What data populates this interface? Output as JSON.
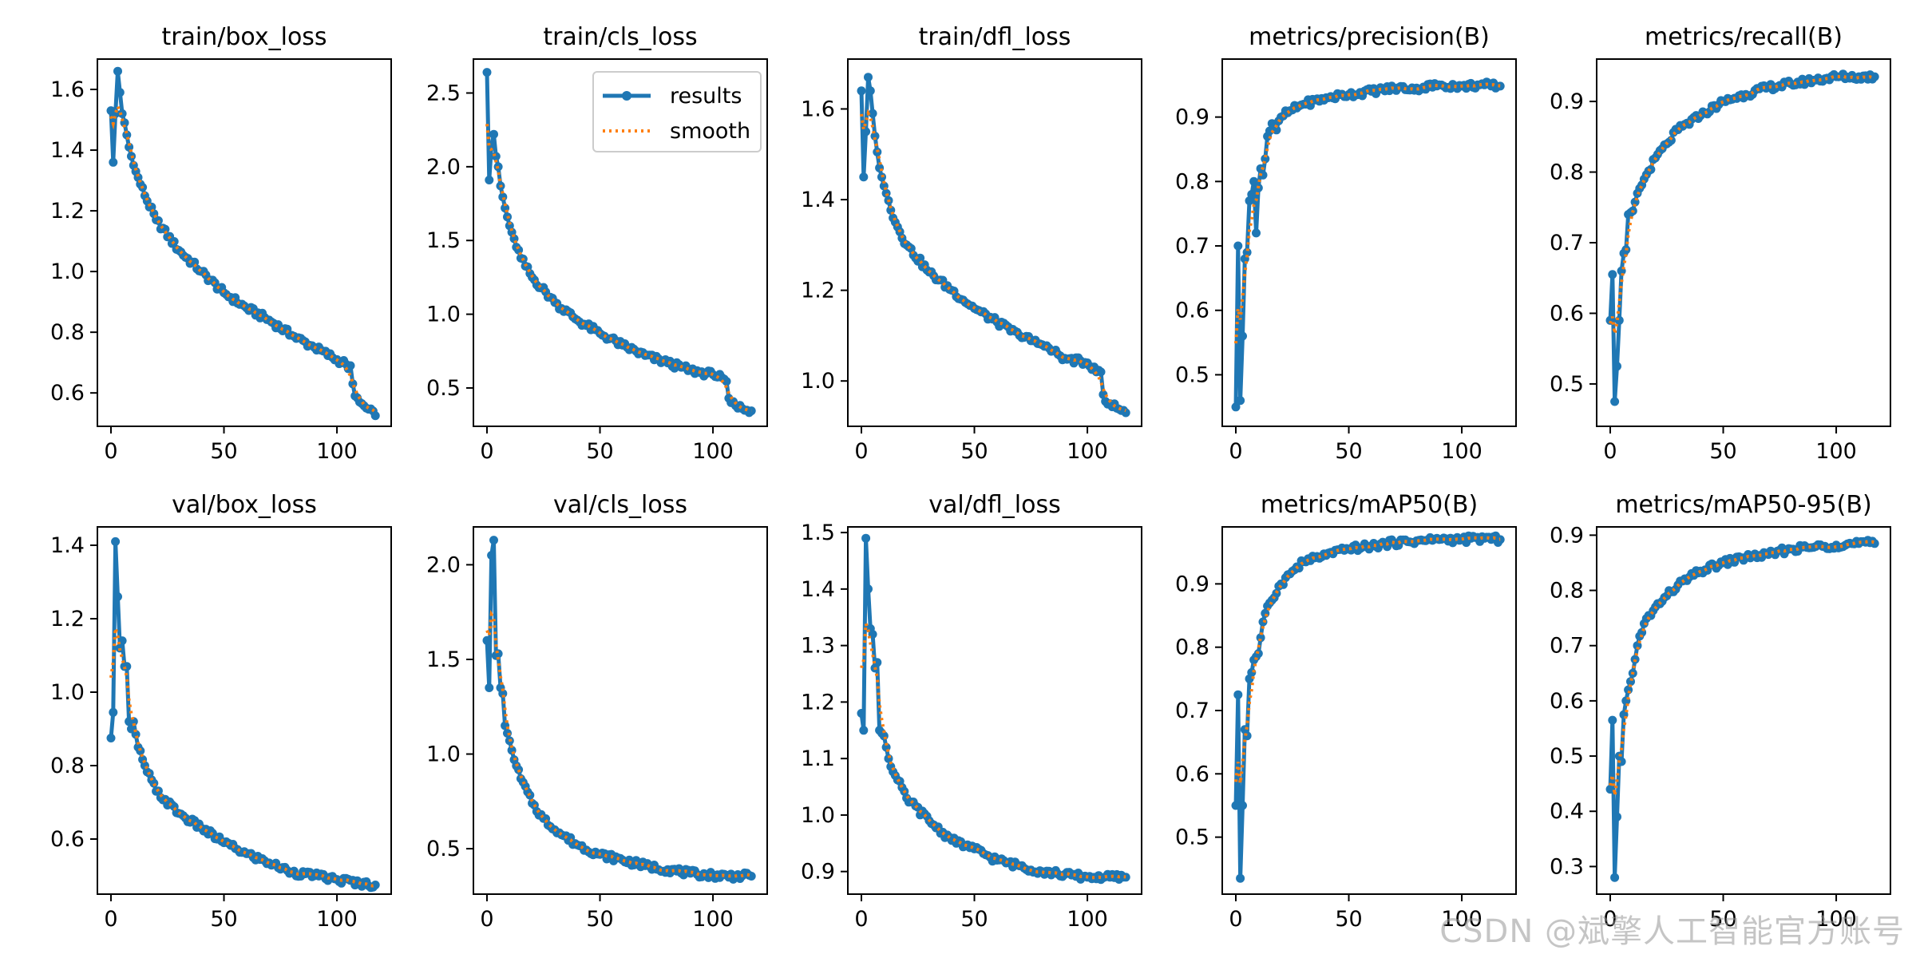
{
  "figure": {
    "watermark": "CSDN @斌擎人工智能官方账号",
    "legend": {
      "results": "results",
      "smooth": "smooth",
      "placement": "upper right of train/cls_loss"
    },
    "colors": {
      "results": "#1f77b4",
      "smooth": "#ff7f0e",
      "axis": "#000000",
      "background": "#ffffff"
    }
  },
  "chart_data": [
    {
      "type": "line",
      "title": "train/box_loss",
      "xlabel": "",
      "ylabel": "",
      "xlim": [
        -6,
        124
      ],
      "ylim": [
        0.49,
        1.7
      ],
      "xticks": [
        0,
        50,
        100
      ],
      "yticks": [
        0.6,
        0.8,
        1.0,
        1.2,
        1.4,
        1.6
      ],
      "ytick_labels": [
        "0.6",
        "0.8",
        "1.0",
        "1.2",
        "1.4",
        "1.6"
      ],
      "n_points": 118,
      "anchors": [
        [
          0,
          1.53
        ],
        [
          1,
          1.36
        ],
        [
          2,
          1.52
        ],
        [
          3,
          1.66
        ],
        [
          4,
          1.59
        ],
        [
          5,
          1.52
        ],
        [
          6,
          1.49
        ],
        [
          8,
          1.41
        ],
        [
          10,
          1.35
        ],
        [
          15,
          1.25
        ],
        [
          20,
          1.17
        ],
        [
          30,
          1.07
        ],
        [
          40,
          1.0
        ],
        [
          50,
          0.93
        ],
        [
          60,
          0.88
        ],
        [
          70,
          0.84
        ],
        [
          80,
          0.79
        ],
        [
          90,
          0.75
        ],
        [
          100,
          0.71
        ],
        [
          104,
          0.695
        ],
        [
          105,
          0.68
        ],
        [
          106,
          0.69
        ],
        [
          107,
          0.63
        ],
        [
          108,
          0.59
        ],
        [
          110,
          0.57
        ],
        [
          113,
          0.55
        ],
        [
          117,
          0.525
        ]
      ],
      "smooth": true,
      "legend": false
    },
    {
      "type": "line",
      "title": "train/cls_loss",
      "xlabel": "",
      "ylabel": "",
      "xlim": [
        -6,
        124
      ],
      "ylim": [
        0.24,
        2.73
      ],
      "xticks": [
        0,
        50,
        100
      ],
      "yticks": [
        0.5,
        1.0,
        1.5,
        2.0,
        2.5
      ],
      "ytick_labels": [
        "0.5",
        "1.0",
        "1.5",
        "2.0",
        "2.5"
      ],
      "n_points": 118,
      "anchors": [
        [
          0,
          2.64
        ],
        [
          1,
          1.91
        ],
        [
          2,
          2.14
        ],
        [
          3,
          2.22
        ],
        [
          4,
          2.07
        ],
        [
          5,
          2.0
        ],
        [
          6,
          1.87
        ],
        [
          8,
          1.72
        ],
        [
          10,
          1.6
        ],
        [
          15,
          1.38
        ],
        [
          20,
          1.25
        ],
        [
          30,
          1.08
        ],
        [
          40,
          0.96
        ],
        [
          50,
          0.87
        ],
        [
          60,
          0.79
        ],
        [
          70,
          0.72
        ],
        [
          80,
          0.67
        ],
        [
          90,
          0.62
        ],
        [
          100,
          0.59
        ],
        [
          104,
          0.57
        ],
        [
          105,
          0.56
        ],
        [
          106,
          0.545
        ],
        [
          107,
          0.43
        ],
        [
          108,
          0.4
        ],
        [
          110,
          0.38
        ],
        [
          113,
          0.36
        ],
        [
          117,
          0.345
        ]
      ],
      "smooth": true,
      "legend": true
    },
    {
      "type": "line",
      "title": "train/dfl_loss",
      "xlabel": "",
      "ylabel": "",
      "xlim": [
        -6,
        124
      ],
      "ylim": [
        0.9,
        1.71
      ],
      "xticks": [
        0,
        50,
        100
      ],
      "yticks": [
        1.0,
        1.2,
        1.4,
        1.6
      ],
      "ytick_labels": [
        "1.0",
        "1.2",
        "1.4",
        "1.6"
      ],
      "n_points": 118,
      "anchors": [
        [
          0,
          1.64
        ],
        [
          1,
          1.45
        ],
        [
          2,
          1.55
        ],
        [
          3,
          1.67
        ],
        [
          4,
          1.64
        ],
        [
          5,
          1.59
        ],
        [
          6,
          1.54
        ],
        [
          8,
          1.47
        ],
        [
          10,
          1.43
        ],
        [
          15,
          1.35
        ],
        [
          20,
          1.3
        ],
        [
          30,
          1.24
        ],
        [
          40,
          1.2
        ],
        [
          50,
          1.16
        ],
        [
          60,
          1.13
        ],
        [
          70,
          1.1
        ],
        [
          80,
          1.08
        ],
        [
          90,
          1.05
        ],
        [
          100,
          1.04
        ],
        [
          104,
          1.02
        ],
        [
          106,
          1.02
        ],
        [
          107,
          0.97
        ],
        [
          108,
          0.955
        ],
        [
          110,
          0.95
        ],
        [
          113,
          0.94
        ],
        [
          117,
          0.93
        ]
      ],
      "smooth": true,
      "legend": false
    },
    {
      "type": "line",
      "title": "metrics/precision(B)",
      "xlabel": "",
      "ylabel": "",
      "xlim": [
        -6,
        124
      ],
      "ylim": [
        0.42,
        0.99
      ],
      "xticks": [
        0,
        50,
        100
      ],
      "yticks": [
        0.5,
        0.6,
        0.7,
        0.8,
        0.9
      ],
      "ytick_labels": [
        "0.5",
        "0.6",
        "0.7",
        "0.8",
        "0.9"
      ],
      "n_points": 118,
      "anchors": [
        [
          0,
          0.45
        ],
        [
          1,
          0.7
        ],
        [
          2,
          0.46
        ],
        [
          3,
          0.56
        ],
        [
          4,
          0.68
        ],
        [
          5,
          0.69
        ],
        [
          6,
          0.77
        ],
        [
          7,
          0.78
        ],
        [
          8,
          0.8
        ],
        [
          9,
          0.72
        ],
        [
          10,
          0.79
        ],
        [
          11,
          0.82
        ],
        [
          12,
          0.81
        ],
        [
          14,
          0.87
        ],
        [
          16,
          0.89
        ],
        [
          18,
          0.88
        ],
        [
          20,
          0.9
        ],
        [
          24,
          0.91
        ],
        [
          30,
          0.92
        ],
        [
          40,
          0.93
        ],
        [
          50,
          0.935
        ],
        [
          60,
          0.94
        ],
        [
          70,
          0.945
        ],
        [
          80,
          0.945
        ],
        [
          90,
          0.95
        ],
        [
          100,
          0.948
        ],
        [
          110,
          0.95
        ],
        [
          117,
          0.948
        ]
      ],
      "smooth": true,
      "legend": false
    },
    {
      "type": "line",
      "title": "metrics/recall(B)",
      "xlabel": "",
      "ylabel": "",
      "xlim": [
        -6,
        124
      ],
      "ylim": [
        0.44,
        0.96
      ],
      "xticks": [
        0,
        50,
        100
      ],
      "yticks": [
        0.5,
        0.6,
        0.7,
        0.8,
        0.9
      ],
      "ytick_labels": [
        "0.5",
        "0.6",
        "0.7",
        "0.8",
        "0.9"
      ],
      "n_points": 118,
      "anchors": [
        [
          0,
          0.59
        ],
        [
          1,
          0.655
        ],
        [
          2,
          0.475
        ],
        [
          3,
          0.525
        ],
        [
          4,
          0.59
        ],
        [
          5,
          0.66
        ],
        [
          6,
          0.685
        ],
        [
          7,
          0.69
        ],
        [
          8,
          0.74
        ],
        [
          10,
          0.745
        ],
        [
          12,
          0.77
        ],
        [
          15,
          0.79
        ],
        [
          20,
          0.82
        ],
        [
          25,
          0.84
        ],
        [
          30,
          0.86
        ],
        [
          40,
          0.88
        ],
        [
          50,
          0.9
        ],
        [
          60,
          0.91
        ],
        [
          70,
          0.92
        ],
        [
          80,
          0.925
        ],
        [
          90,
          0.93
        ],
        [
          100,
          0.935
        ],
        [
          110,
          0.935
        ],
        [
          117,
          0.935
        ]
      ],
      "smooth": true,
      "legend": false
    },
    {
      "type": "line",
      "title": "val/box_loss",
      "xlabel": "",
      "ylabel": "",
      "xlim": [
        -6,
        124
      ],
      "ylim": [
        0.45,
        1.45
      ],
      "xticks": [
        0,
        50,
        100
      ],
      "yticks": [
        0.6,
        0.8,
        1.0,
        1.2,
        1.4
      ],
      "ytick_labels": [
        "0.6",
        "0.8",
        "1.0",
        "1.2",
        "1.4"
      ],
      "n_points": 118,
      "anchors": [
        [
          0,
          0.875
        ],
        [
          1,
          0.945
        ],
        [
          2,
          1.41
        ],
        [
          3,
          1.26
        ],
        [
          4,
          1.12
        ],
        [
          5,
          1.14
        ],
        [
          6,
          1.07
        ],
        [
          7,
          1.07
        ],
        [
          8,
          0.92
        ],
        [
          9,
          0.9
        ],
        [
          10,
          0.92
        ],
        [
          12,
          0.85
        ],
        [
          15,
          0.8
        ],
        [
          20,
          0.73
        ],
        [
          30,
          0.67
        ],
        [
          40,
          0.63
        ],
        [
          50,
          0.59
        ],
        [
          60,
          0.56
        ],
        [
          70,
          0.535
        ],
        [
          80,
          0.51
        ],
        [
          90,
          0.5
        ],
        [
          100,
          0.49
        ],
        [
          110,
          0.48
        ],
        [
          117,
          0.475
        ]
      ],
      "smooth": true,
      "legend": false
    },
    {
      "type": "line",
      "title": "val/cls_loss",
      "xlabel": "",
      "ylabel": "",
      "xlim": [
        -6,
        124
      ],
      "ylim": [
        0.26,
        2.2
      ],
      "xticks": [
        0,
        50,
        100
      ],
      "yticks": [
        0.5,
        1.0,
        1.5,
        2.0
      ],
      "ytick_labels": [
        "0.5",
        "1.0",
        "1.5",
        "2.0"
      ],
      "n_points": 118,
      "anchors": [
        [
          0,
          1.6
        ],
        [
          1,
          1.35
        ],
        [
          2,
          2.05
        ],
        [
          3,
          2.13
        ],
        [
          4,
          1.52
        ],
        [
          5,
          1.53
        ],
        [
          6,
          1.35
        ],
        [
          7,
          1.32
        ],
        [
          8,
          1.15
        ],
        [
          10,
          1.07
        ],
        [
          12,
          0.97
        ],
        [
          15,
          0.87
        ],
        [
          20,
          0.74
        ],
        [
          25,
          0.66
        ],
        [
          30,
          0.6
        ],
        [
          40,
          0.52
        ],
        [
          50,
          0.47
        ],
        [
          60,
          0.44
        ],
        [
          70,
          0.41
        ],
        [
          80,
          0.39
        ],
        [
          90,
          0.37
        ],
        [
          100,
          0.36
        ],
        [
          110,
          0.355
        ],
        [
          117,
          0.355
        ]
      ],
      "smooth": true,
      "legend": false
    },
    {
      "type": "line",
      "title": "val/dfl_loss",
      "xlabel": "",
      "ylabel": "",
      "xlim": [
        -6,
        124
      ],
      "ylim": [
        0.86,
        1.51
      ],
      "xticks": [
        0,
        50,
        100
      ],
      "yticks": [
        0.9,
        1.0,
        1.1,
        1.2,
        1.3,
        1.4,
        1.5
      ],
      "ytick_labels": [
        "0.9",
        "1.0",
        "1.1",
        "1.2",
        "1.3",
        "1.4",
        "1.5"
      ],
      "n_points": 118,
      "anchors": [
        [
          0,
          1.18
        ],
        [
          1,
          1.15
        ],
        [
          2,
          1.49
        ],
        [
          3,
          1.4
        ],
        [
          4,
          1.33
        ],
        [
          5,
          1.32
        ],
        [
          6,
          1.26
        ],
        [
          7,
          1.27
        ],
        [
          8,
          1.15
        ],
        [
          10,
          1.14
        ],
        [
          12,
          1.1
        ],
        [
          15,
          1.07
        ],
        [
          20,
          1.03
        ],
        [
          30,
          0.99
        ],
        [
          40,
          0.955
        ],
        [
          50,
          0.94
        ],
        [
          60,
          0.92
        ],
        [
          70,
          0.91
        ],
        [
          80,
          0.9
        ],
        [
          90,
          0.895
        ],
        [
          100,
          0.89
        ],
        [
          110,
          0.89
        ],
        [
          117,
          0.89
        ]
      ],
      "smooth": true,
      "legend": false
    },
    {
      "type": "line",
      "title": "metrics/mAP50(B)",
      "xlabel": "",
      "ylabel": "",
      "xlim": [
        -6,
        124
      ],
      "ylim": [
        0.41,
        0.99
      ],
      "xticks": [
        0,
        50,
        100
      ],
      "yticks": [
        0.5,
        0.6,
        0.7,
        0.8,
        0.9
      ],
      "ytick_labels": [
        "0.5",
        "0.6",
        "0.7",
        "0.8",
        "0.9"
      ],
      "n_points": 118,
      "anchors": [
        [
          0,
          0.55
        ],
        [
          1,
          0.725
        ],
        [
          2,
          0.435
        ],
        [
          3,
          0.55
        ],
        [
          4,
          0.67
        ],
        [
          5,
          0.66
        ],
        [
          6,
          0.75
        ],
        [
          7,
          0.76
        ],
        [
          8,
          0.78
        ],
        [
          10,
          0.79
        ],
        [
          12,
          0.84
        ],
        [
          15,
          0.87
        ],
        [
          20,
          0.9
        ],
        [
          25,
          0.92
        ],
        [
          30,
          0.935
        ],
        [
          40,
          0.945
        ],
        [
          50,
          0.955
        ],
        [
          60,
          0.96
        ],
        [
          70,
          0.965
        ],
        [
          80,
          0.968
        ],
        [
          90,
          0.97
        ],
        [
          100,
          0.97
        ],
        [
          110,
          0.972
        ],
        [
          117,
          0.97
        ]
      ],
      "smooth": true,
      "legend": false
    },
    {
      "type": "line",
      "title": "metrics/mAP50-95(B)",
      "xlabel": "",
      "ylabel": "",
      "xlim": [
        -6,
        124
      ],
      "ylim": [
        0.25,
        0.915
      ],
      "xticks": [
        0,
        50,
        100
      ],
      "yticks": [
        0.3,
        0.4,
        0.5,
        0.6,
        0.7,
        0.8,
        0.9
      ],
      "ytick_labels": [
        "0.3",
        "0.4",
        "0.5",
        "0.6",
        "0.7",
        "0.8",
        "0.9"
      ],
      "n_points": 118,
      "anchors": [
        [
          0,
          0.44
        ],
        [
          1,
          0.565
        ],
        [
          2,
          0.28
        ],
        [
          3,
          0.39
        ],
        [
          4,
          0.5
        ],
        [
          5,
          0.49
        ],
        [
          6,
          0.575
        ],
        [
          7,
          0.6
        ],
        [
          8,
          0.62
        ],
        [
          10,
          0.65
        ],
        [
          12,
          0.7
        ],
        [
          15,
          0.74
        ],
        [
          20,
          0.77
        ],
        [
          25,
          0.79
        ],
        [
          30,
          0.81
        ],
        [
          40,
          0.835
        ],
        [
          50,
          0.85
        ],
        [
          60,
          0.86
        ],
        [
          70,
          0.865
        ],
        [
          80,
          0.875
        ],
        [
          90,
          0.878
        ],
        [
          100,
          0.882
        ],
        [
          110,
          0.885
        ],
        [
          117,
          0.885
        ]
      ],
      "smooth": true,
      "legend": false
    }
  ]
}
